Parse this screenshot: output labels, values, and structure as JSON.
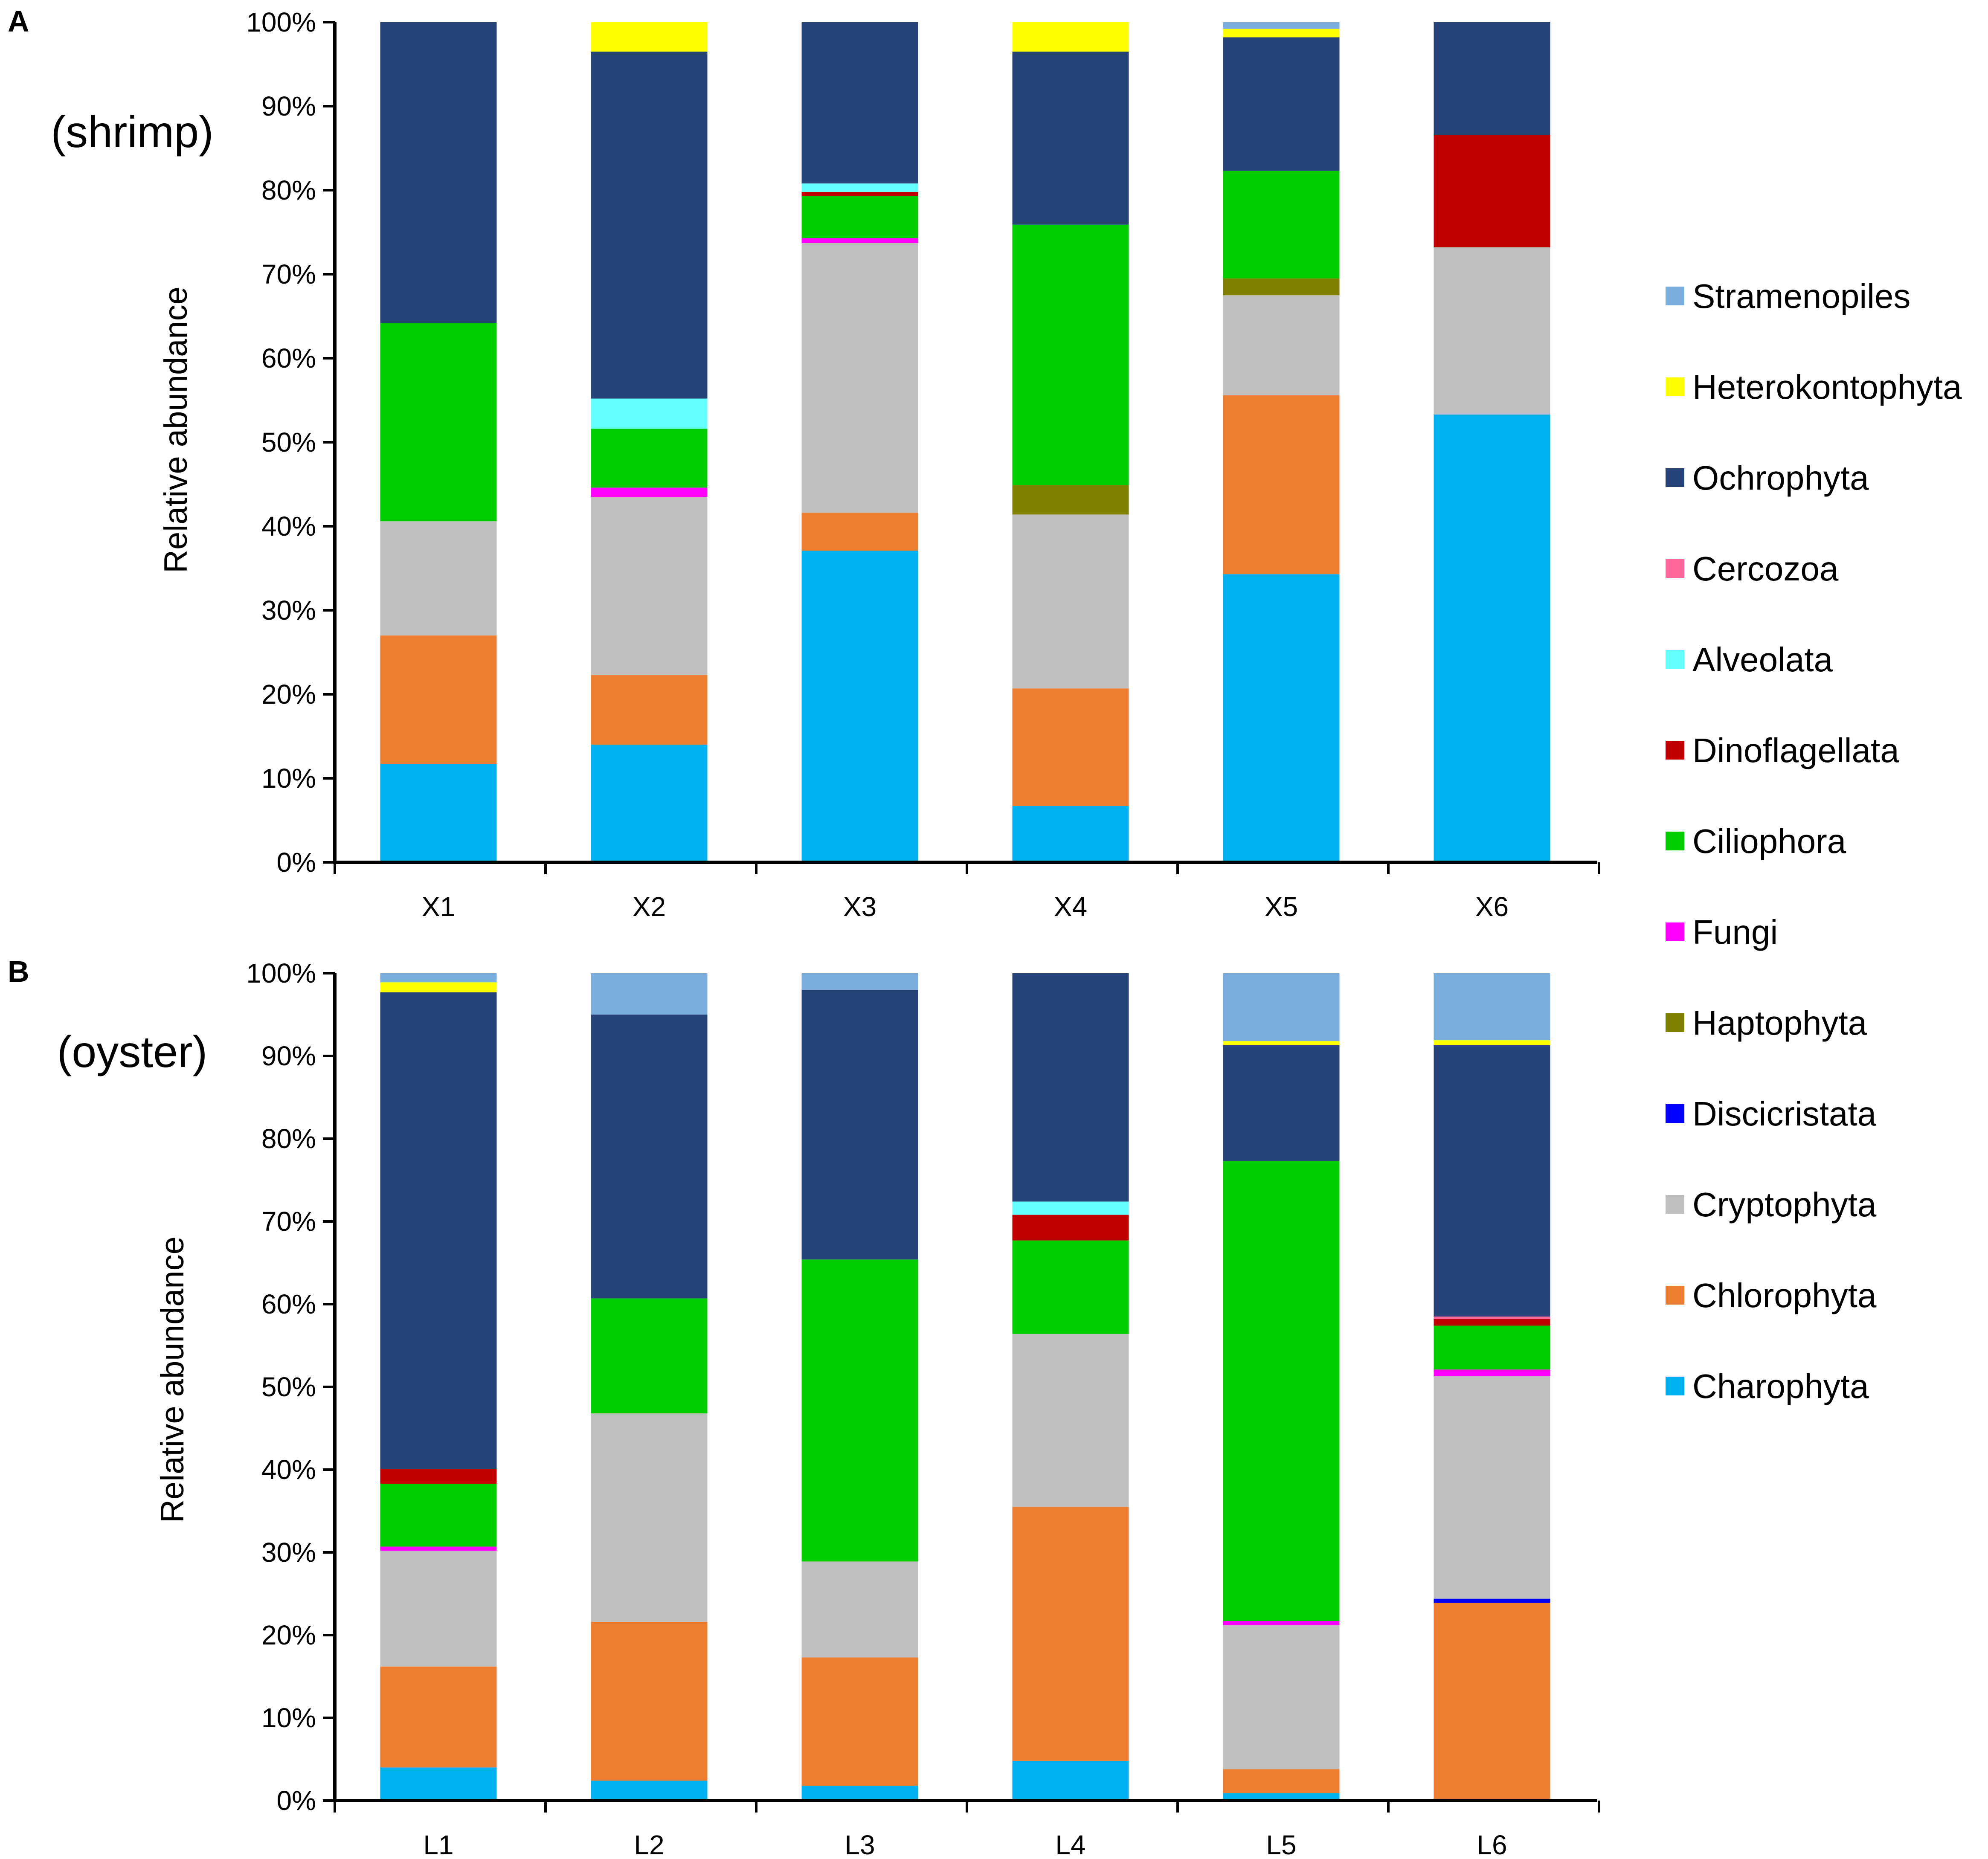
{
  "legend": [
    {
      "name": "Stramenopiles",
      "color": "#7BAEDD"
    },
    {
      "name": "Heterokontophyta",
      "color": "#FFFF00"
    },
    {
      "name": "Ochrophyta",
      "color": "#264478"
    },
    {
      "name": "Cercozoa",
      "color": "#FF6699"
    },
    {
      "name": "Alveolata",
      "color": "#66FFFF"
    },
    {
      "name": "Dinoflagellata",
      "color": "#C00000"
    },
    {
      "name": "Ciliophora",
      "color": "#00CC00"
    },
    {
      "name": "Fungi",
      "color": "#FF00FF"
    },
    {
      "name": "Haptophyta",
      "color": "#808000"
    },
    {
      "name": "Discicristata",
      "color": "#0000FF"
    },
    {
      "name": "Cryptophyta",
      "color": "#BFBFBF"
    },
    {
      "name": "Chlorophyta",
      "color": "#ED7D31"
    },
    {
      "name": "Charophyta",
      "color": "#00B0F0"
    }
  ],
  "chart_data": [
    {
      "type": "bar",
      "stacked": true,
      "panel_letter": "A",
      "subtitle": "(shrimp)",
      "ylabel": "Relative abundance",
      "xlabel": "",
      "ylim": [
        0,
        100
      ],
      "y_ticks": [
        "0%",
        "10%",
        "20%",
        "30%",
        "40%",
        "50%",
        "60%",
        "70%",
        "80%",
        "90%",
        "100%"
      ],
      "categories": [
        "X1",
        "X2",
        "X3",
        "X4",
        "X5",
        "X6"
      ],
      "series": [
        {
          "name": "Charophyta",
          "values": [
            11.7,
            14.0,
            37.1,
            6.7,
            34.3,
            53.3
          ]
        },
        {
          "name": "Chlorophyta",
          "values": [
            15.3,
            8.3,
            4.5,
            14.0,
            21.3,
            0
          ]
        },
        {
          "name": "Discicristata",
          "values": [
            0,
            0,
            0,
            0,
            0,
            0
          ]
        },
        {
          "name": "Cryptophyta",
          "values": [
            13.6,
            21.2,
            32.1,
            20.7,
            11.9,
            19.9
          ]
        },
        {
          "name": "Haptophyta",
          "values": [
            0,
            0,
            0,
            3.5,
            2.0,
            0
          ]
        },
        {
          "name": "Fungi",
          "values": [
            0,
            1.1,
            0.6,
            0,
            0,
            0
          ]
        },
        {
          "name": "Ciliophora",
          "values": [
            23.6,
            7.0,
            5.0,
            31.0,
            12.8,
            0
          ]
        },
        {
          "name": "Dinoflagellata",
          "values": [
            0,
            0,
            0.5,
            0,
            0,
            13.4
          ]
        },
        {
          "name": "Alveolata",
          "values": [
            0,
            3.6,
            1.0,
            0,
            0,
            0
          ]
        },
        {
          "name": "Cercozoa",
          "values": [
            0,
            0,
            0,
            0,
            0,
            0
          ]
        },
        {
          "name": "Ochrophyta",
          "values": [
            35.8,
            41.3,
            19.2,
            20.6,
            15.9,
            13.4
          ]
        },
        {
          "name": "Heterokontophyta",
          "values": [
            0,
            3.5,
            0,
            3.5,
            1.0,
            0
          ]
        },
        {
          "name": "Stramenopiles",
          "values": [
            0,
            0,
            0,
            0,
            0.8,
            0
          ]
        }
      ]
    },
    {
      "type": "bar",
      "stacked": true,
      "panel_letter": "B",
      "subtitle": "(oyster)",
      "ylabel": "Relative abundance",
      "xlabel": "",
      "ylim": [
        0,
        100
      ],
      "y_ticks": [
        "0%",
        "10%",
        "20%",
        "30%",
        "40%",
        "50%",
        "60%",
        "70%",
        "80%",
        "90%",
        "100%"
      ],
      "categories": [
        "L1",
        "L2",
        "L3",
        "L4",
        "L5",
        "L6"
      ],
      "series": [
        {
          "name": "Charophyta",
          "values": [
            4.0,
            2.4,
            1.8,
            4.8,
            0.9,
            0
          ]
        },
        {
          "name": "Chlorophyta",
          "values": [
            12.2,
            19.2,
            15.5,
            30.7,
            2.9,
            23.9
          ]
        },
        {
          "name": "Discicristata",
          "values": [
            0,
            0,
            0,
            0,
            0,
            0.5
          ]
        },
        {
          "name": "Cryptophyta",
          "values": [
            14.0,
            25.2,
            11.6,
            20.9,
            17.4,
            26.9
          ]
        },
        {
          "name": "Haptophyta",
          "values": [
            0,
            0,
            0,
            0,
            0,
            0
          ]
        },
        {
          "name": "Fungi",
          "values": [
            0.5,
            0,
            0,
            0,
            0.5,
            0.8
          ]
        },
        {
          "name": "Ciliophora",
          "values": [
            7.6,
            13.9,
            36.5,
            11.3,
            55.6,
            5.3
          ]
        },
        {
          "name": "Dinoflagellata",
          "values": [
            1.8,
            0,
            0,
            3.1,
            0,
            0.8
          ]
        },
        {
          "name": "Alveolata",
          "values": [
            0,
            0,
            0,
            1.6,
            0,
            0
          ]
        },
        {
          "name": "Cercozoa",
          "values": [
            0,
            0,
            0,
            0,
            0,
            0.3
          ]
        },
        {
          "name": "Ochrophyta",
          "values": [
            57.6,
            34.3,
            32.6,
            27.6,
            14.0,
            32.8
          ]
        },
        {
          "name": "Heterokontophyta",
          "values": [
            1.2,
            0,
            0,
            0,
            0.5,
            0.6
          ]
        },
        {
          "name": "Stramenopiles",
          "values": [
            1.1,
            5.0,
            2.0,
            0,
            8.2,
            8.1
          ]
        }
      ]
    }
  ]
}
